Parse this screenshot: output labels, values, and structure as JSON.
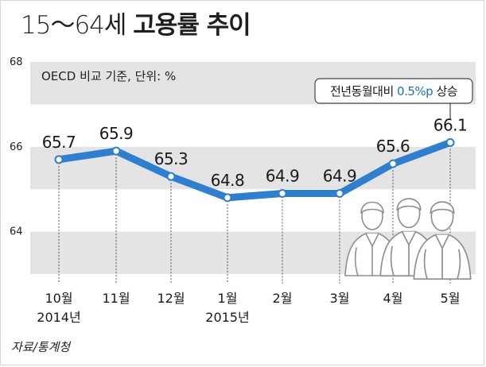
{
  "title_prefix": "15～64세",
  "title_main": "고용률 추이",
  "source": "자료/통계청",
  "chart_data": {
    "type": "line",
    "title": "15～64세 고용률 추이",
    "subtitle": "OECD 비교 기준, 단위: %",
    "categories": [
      "10월",
      "11월",
      "12월",
      "1월",
      "2월",
      "3월",
      "4월",
      "5월"
    ],
    "category_sublabels": [
      "2014년",
      "",
      "",
      "2015년",
      "",
      "",
      "",
      ""
    ],
    "values": [
      65.7,
      65.9,
      65.3,
      64.8,
      64.9,
      64.9,
      65.6,
      66.1
    ],
    "value_labels": [
      "65.7",
      "65.9",
      "65.3",
      "64.8",
      "64.9",
      "64.9",
      "65.6",
      "66.1"
    ],
    "y_ticks": [
      64,
      66,
      68
    ],
    "y_tick_labels": [
      "64",
      "66",
      "68"
    ],
    "ylim": [
      63,
      68
    ],
    "grid": "banded",
    "callout": {
      "prefix": "전년동월대비 ",
      "highlight": "0.5%p",
      "suffix": " 상승"
    },
    "colors": {
      "line": "#2e7fcf",
      "highlight": "#1f6fc2",
      "band": "#e4e4e4"
    }
  }
}
